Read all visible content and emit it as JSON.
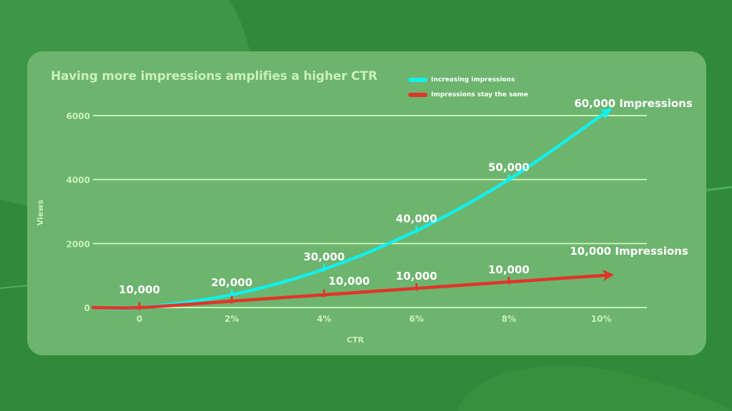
{
  "colors": {
    "background": "#2f8a3a",
    "card": "#6db46f",
    "grid": "#c9f1b6",
    "axis_text": "#c9f1b6",
    "increasing": "#12f0ec",
    "same": "#e0352b",
    "label_text": "#ffffff"
  },
  "chart_data": {
    "type": "line",
    "title": "Having more impressions amplifies a higher CTR",
    "xlabel": "CTR",
    "ylabel": "Views",
    "x": [
      0,
      2,
      4,
      6,
      8,
      10
    ],
    "x_tick_labels": [
      "0",
      "2%",
      "4%",
      "6%",
      "8%",
      "10%"
    ],
    "y_ticks": [
      0,
      2000,
      4000,
      6000
    ],
    "y_tick_labels": [
      "0",
      "2000",
      "4000",
      "6000"
    ],
    "ylim": [
      0,
      6000
    ],
    "grid": true,
    "legend_position": "top-right",
    "series": [
      {
        "name": "Increasing impressions",
        "color": "#12f0ec",
        "values": [
          0,
          400,
          1200,
          2400,
          4000,
          6000
        ],
        "point_labels": [
          "10,000",
          "20,000",
          "30,000",
          "40,000",
          "50,000",
          "60,000 Impressions"
        ]
      },
      {
        "name": "Impressions stay the same",
        "color": "#e0352b",
        "values": [
          0,
          200,
          400,
          600,
          800,
          1000
        ],
        "point_labels": [
          "",
          "",
          "10,000",
          "10,000",
          "10,000",
          "10,000 Impressions"
        ]
      }
    ]
  }
}
